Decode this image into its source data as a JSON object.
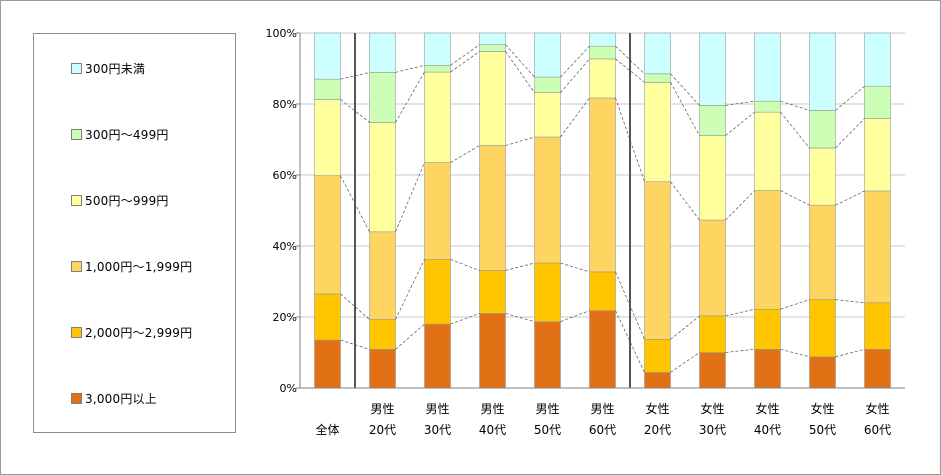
{
  "chart_data": {
    "type": "bar",
    "stacked": true,
    "percent": true,
    "title": "",
    "xlabel": "",
    "ylabel": "",
    "ylim": [
      0,
      100
    ],
    "yticks": [
      "0%",
      "20%",
      "40%",
      "60%",
      "80%",
      "100%"
    ],
    "grid": true,
    "legend_position": "left",
    "categories": [
      [
        "全体"
      ],
      [
        "男性",
        "20代"
      ],
      [
        "男性",
        "30代"
      ],
      [
        "男性",
        "40代"
      ],
      [
        "男性",
        "50代"
      ],
      [
        "男性",
        "60代"
      ],
      [
        "女性",
        "20代"
      ],
      [
        "女性",
        "30代"
      ],
      [
        "女性",
        "40代"
      ],
      [
        "女性",
        "50代"
      ],
      [
        "女性",
        "60代"
      ]
    ],
    "group_dividers_after": [
      0,
      5
    ],
    "series": [
      {
        "name": "3,000円以上",
        "color": "#e27115",
        "values": [
          13.5,
          10.9,
          18.0,
          21.0,
          18.7,
          21.8,
          4.4,
          10.0,
          10.9,
          8.8,
          10.9
        ]
      },
      {
        "name": "2,000円～2,999円",
        "color": "#ffc600",
        "values": [
          13.0,
          8.4,
          18.2,
          12.1,
          16.5,
          10.9,
          9.3,
          10.3,
          11.3,
          16.1,
          13.1
        ]
      },
      {
        "name": "1,000円～1,999円",
        "color": "#ffd562",
        "values": [
          33.3,
          24.7,
          27.3,
          35.2,
          35.5,
          49.0,
          44.4,
          27.0,
          33.4,
          26.6,
          31.5
        ]
      },
      {
        "name": "500円～999円",
        "color": "#ffff9e",
        "values": [
          21.5,
          30.8,
          25.5,
          26.5,
          12.5,
          11.0,
          28.0,
          23.8,
          22.1,
          16.1,
          20.4
        ]
      },
      {
        "name": "300円～499円",
        "color": "#ccffb5",
        "values": [
          5.7,
          14.1,
          1.9,
          1.9,
          4.4,
          3.6,
          2.4,
          8.5,
          3.1,
          10.6,
          9.1
        ]
      },
      {
        "name": "300円未満",
        "color": "#ccffff",
        "values": [
          13.0,
          11.1,
          9.1,
          3.3,
          12.4,
          3.7,
          11.5,
          20.4,
          19.2,
          21.8,
          15.0
        ]
      }
    ]
  },
  "legend": {
    "order": [
      5,
      4,
      3,
      2,
      1,
      0
    ]
  }
}
